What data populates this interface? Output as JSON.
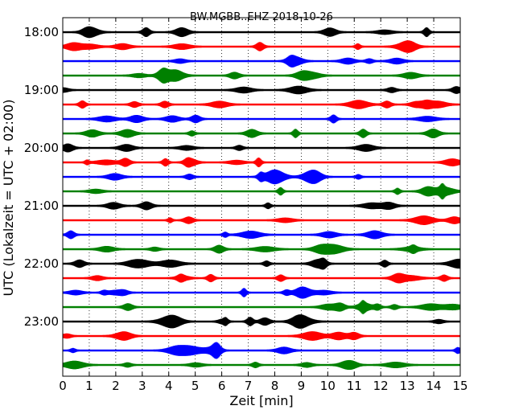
{
  "chart_data": {
    "type": "line",
    "title": "BW.MGBB..EHZ 2018-10-26",
    "xlabel": "Zeit  [min]",
    "ylabel": "UTC (Lokalzeit = UTC + 02:00)",
    "xlim": [
      0,
      15
    ],
    "x_ticks": [
      "0",
      "1",
      "2",
      "3",
      "4",
      "5",
      "6",
      "7",
      "8",
      "9",
      "10",
      "11",
      "12",
      "13",
      "14",
      "15"
    ],
    "y_ticks": [
      "18:00",
      "19:00",
      "20:00",
      "21:00",
      "22:00",
      "23:00"
    ],
    "grid": "vertical dotted",
    "legend": "none",
    "trace_colors": [
      "#000000",
      "#ff0000",
      "#0000ff",
      "#008000"
    ],
    "traces": [
      {
        "start": "18:00",
        "color": "#000000"
      },
      {
        "start": "18:15",
        "color": "#ff0000"
      },
      {
        "start": "18:30",
        "color": "#0000ff"
      },
      {
        "start": "18:45",
        "color": "#008000"
      },
      {
        "start": "19:00",
        "color": "#000000"
      },
      {
        "start": "19:15",
        "color": "#ff0000"
      },
      {
        "start": "19:30",
        "color": "#0000ff"
      },
      {
        "start": "19:45",
        "color": "#008000"
      },
      {
        "start": "20:00",
        "color": "#000000"
      },
      {
        "start": "20:15",
        "color": "#ff0000"
      },
      {
        "start": "20:30",
        "color": "#0000ff"
      },
      {
        "start": "20:45",
        "color": "#008000"
      },
      {
        "start": "21:00",
        "color": "#000000"
      },
      {
        "start": "21:15",
        "color": "#ff0000"
      },
      {
        "start": "21:30",
        "color": "#0000ff"
      },
      {
        "start": "21:45",
        "color": "#008000"
      },
      {
        "start": "22:00",
        "color": "#000000"
      },
      {
        "start": "22:15",
        "color": "#ff0000"
      },
      {
        "start": "22:30",
        "color": "#0000ff"
      },
      {
        "start": "22:45",
        "color": "#008000"
      },
      {
        "start": "23:00",
        "color": "#000000"
      },
      {
        "start": "23:15",
        "color": "#ff0000"
      },
      {
        "start": "23:30",
        "color": "#0000ff"
      },
      {
        "start": "23:45",
        "color": "#008000"
      }
    ]
  }
}
